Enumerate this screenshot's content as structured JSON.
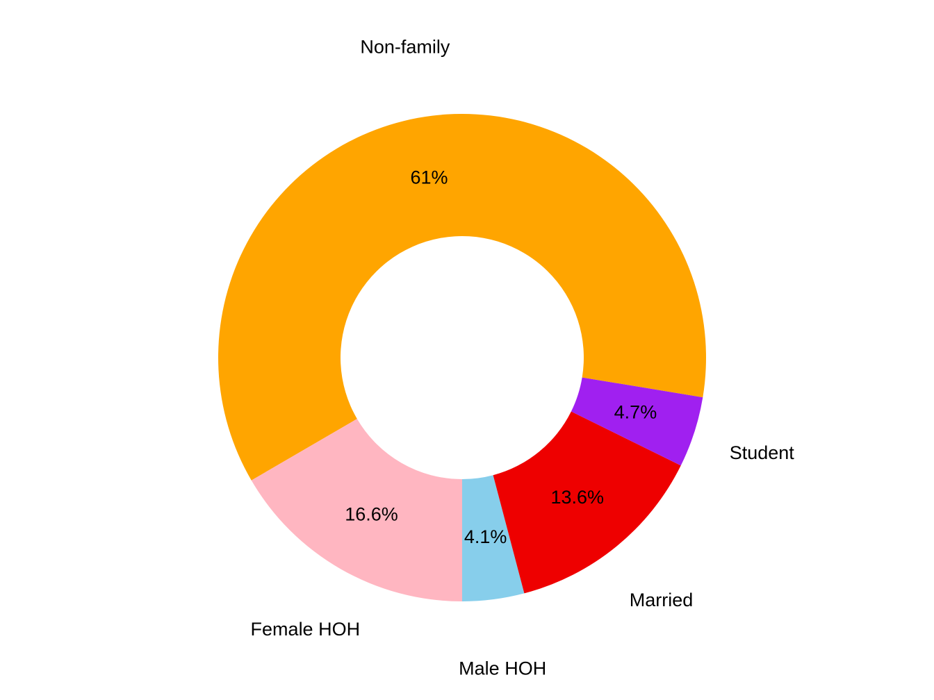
{
  "chart_data": {
    "type": "donut",
    "categories": [
      "Male HOH",
      "Married",
      "Student",
      "Non-family",
      "Female HOH"
    ],
    "values": [
      4.1,
      13.6,
      4.7,
      61,
      16.6
    ],
    "value_labels": [
      "4.1%",
      "13.6%",
      "4.7%",
      "61%",
      "16.6%"
    ],
    "colors": [
      "#87ceeb",
      "#ee0000",
      "#a020f0",
      "#ffa500",
      "#ffb6c1"
    ]
  }
}
